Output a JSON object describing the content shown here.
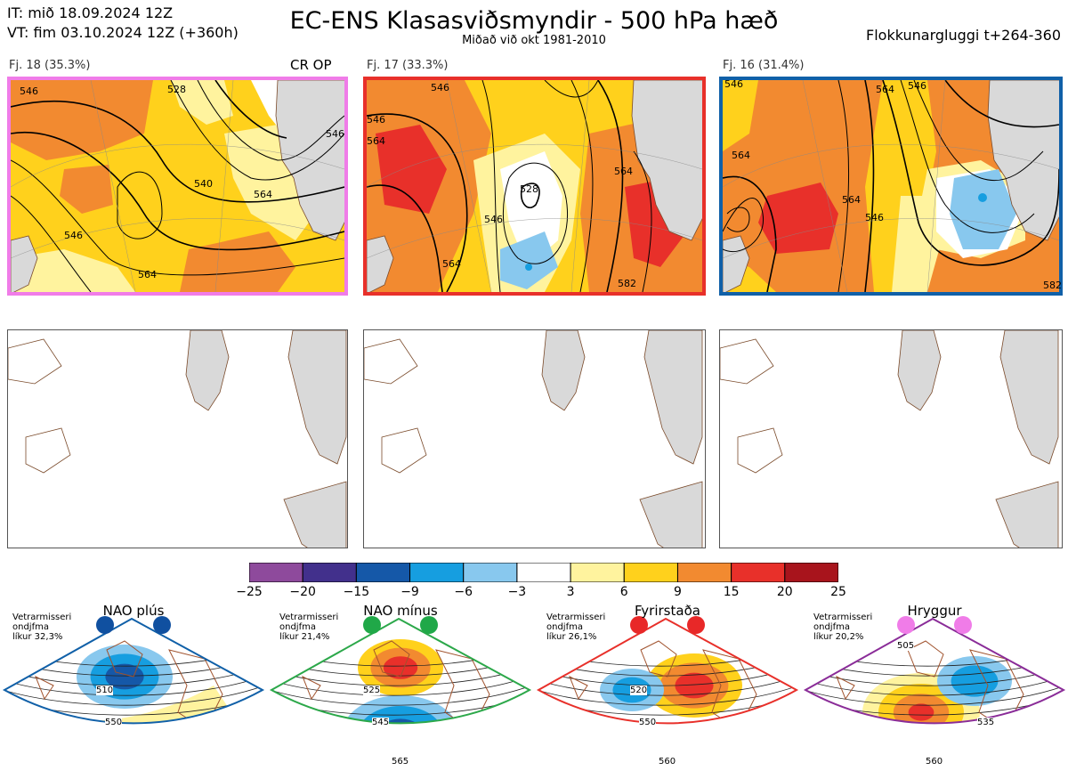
{
  "header": {
    "init_time": "IT: mið 18.09.2024 12Z",
    "valid_time": "VT: fim 03.10.2024 12Z  (+360h)",
    "title": "EC-ENS Klasasviðsmyndir - 500 hPa hæð",
    "subtitle": "Miðað við okt 1981-2010",
    "window": "Flokkunargluggi t+264-360"
  },
  "clusters": [
    {
      "label": "Fj. 18 (35.3%)",
      "border_color": "#f07ce8",
      "contours": [
        "546",
        "528",
        "546",
        "540",
        "564",
        "546",
        "564"
      ],
      "tag": "CR OP"
    },
    {
      "label": "Fj. 17 (33.3%)",
      "border_color": "#e8302a",
      "contours": [
        "546",
        "546",
        "564",
        "528",
        "546",
        "564",
        "564",
        "582"
      ]
    },
    {
      "label": "Fj. 16 (31.4%)",
      "border_color": "#1060a8",
      "contours": [
        "546",
        "564",
        "546",
        "564",
        "546",
        "564",
        "582"
      ]
    }
  ],
  "colorbar": {
    "ticks": [
      "−25",
      "−20",
      "−15",
      "−9",
      "−6",
      "−3",
      "3",
      "6",
      "9",
      "15",
      "20",
      "25"
    ],
    "colors": [
      "#8e4a9c",
      "#42308c",
      "#1558a8",
      "#169ee0",
      "#88c8ee",
      "#ffffff",
      "#fff39e",
      "#ffd11c",
      "#f28a30",
      "#e8302a",
      "#a8141c"
    ]
  },
  "regimes": [
    {
      "name": "NAO plús",
      "info": [
        "Vetrarmisseri",
        "ondjfma",
        "líkur 32,3%"
      ],
      "color": "#1060a8",
      "dot_color": "#1050a0",
      "labels": [
        "510",
        "550"
      ]
    },
    {
      "name": "NAO mínus",
      "info": [
        "Vetrarmisseri",
        "ondjfma",
        "líkur 21,4%"
      ],
      "color": "#2ca84a",
      "dot_color": "#20a848",
      "labels": [
        "525",
        "545",
        "565"
      ]
    },
    {
      "name": "Fyrirstaða",
      "info": [
        "Vetrarmisseri",
        "ondjfma",
        "líkur 26,1%"
      ],
      "color": "#e8302a",
      "dot_color": "#e82828",
      "labels": [
        "520",
        "550",
        "560"
      ]
    },
    {
      "name": "Hryggur",
      "info": [
        "Vetrarmisseri",
        "ondjfma",
        "líkur 20,2%"
      ],
      "color": "#8a2c98",
      "dot_color": "#f07ce8",
      "labels": [
        "505",
        "535",
        "560"
      ]
    }
  ]
}
